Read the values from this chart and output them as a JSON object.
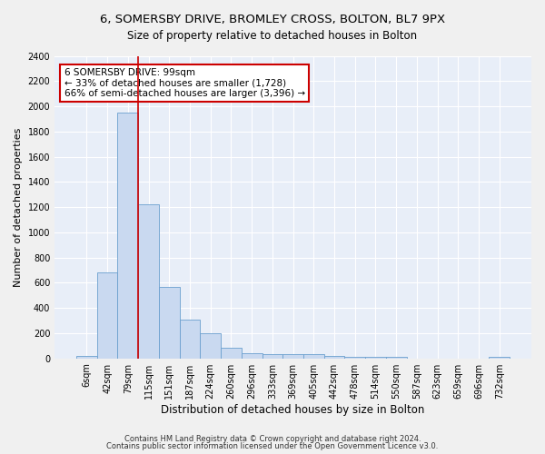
{
  "title": "6, SOMERSBY DRIVE, BROMLEY CROSS, BOLTON, BL7 9PX",
  "subtitle": "Size of property relative to detached houses in Bolton",
  "xlabel": "Distribution of detached houses by size in Bolton",
  "ylabel": "Number of detached properties",
  "footnote1": "Contains HM Land Registry data © Crown copyright and database right 2024.",
  "footnote2": "Contains public sector information licensed under the Open Government Licence v3.0.",
  "annotation_line1": "6 SOMERSBY DRIVE: 99sqm",
  "annotation_line2": "← 33% of detached houses are smaller (1,728)",
  "annotation_line3": "66% of semi-detached houses are larger (3,396) →",
  "bar_labels": [
    "6sqm",
    "42sqm",
    "79sqm",
    "115sqm",
    "151sqm",
    "187sqm",
    "224sqm",
    "260sqm",
    "296sqm",
    "333sqm",
    "369sqm",
    "405sqm",
    "442sqm",
    "478sqm",
    "514sqm",
    "550sqm",
    "587sqm",
    "623sqm",
    "659sqm",
    "696sqm",
    "732sqm"
  ],
  "bar_values": [
    20,
    680,
    1950,
    1220,
    570,
    305,
    200,
    85,
    40,
    35,
    35,
    35,
    20,
    15,
    15,
    15,
    0,
    0,
    0,
    0,
    15
  ],
  "bar_color": "#c9d9f0",
  "bar_edgecolor": "#6b9fce",
  "vline_color": "#cc0000",
  "vline_pos": 2.5,
  "background_color": "#e8eef8",
  "fig_background": "#f0f0f0",
  "ylim": [
    0,
    2400
  ],
  "yticks": [
    0,
    200,
    400,
    600,
    800,
    1000,
    1200,
    1400,
    1600,
    1800,
    2000,
    2200,
    2400
  ],
  "annotation_box_color": "#cc0000",
  "title_fontsize": 9.5,
  "subtitle_fontsize": 8.5,
  "ylabel_fontsize": 8,
  "xlabel_fontsize": 8.5,
  "tick_fontsize": 7,
  "annotation_fontsize": 7.5,
  "footnote_fontsize": 6
}
